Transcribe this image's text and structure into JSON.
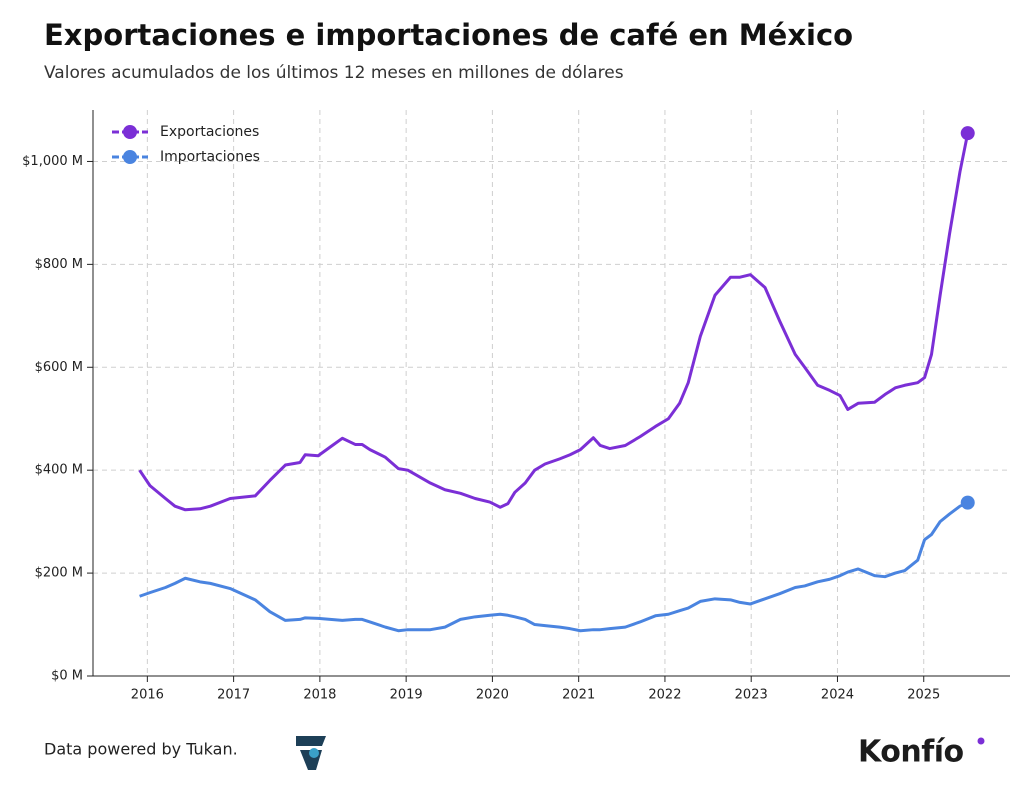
{
  "chart_data": {
    "type": "line",
    "title": "Exportaciones e importaciones de café en México",
    "subtitle": "Valores acumulados de los últimos 12 meses en millones de dólares",
    "footer": "Data powered by Tukan.",
    "brand": "Konfío",
    "x": [
      2015.91,
      2016.03,
      2016.21,
      2016.32,
      2016.44,
      2016.61,
      2016.73,
      2016.96,
      2017.25,
      2017.42,
      2017.6,
      2017.77,
      2017.83,
      2017.98,
      2018.12,
      2018.26,
      2018.41,
      2018.49,
      2018.58,
      2018.76,
      2018.91,
      2019.02,
      2019.28,
      2019.45,
      2019.63,
      2019.8,
      2019.97,
      2020.09,
      2020.18,
      2020.26,
      2020.38,
      2020.49,
      2020.61,
      2020.78,
      2020.9,
      2021.02,
      2021.17,
      2021.25,
      2021.36,
      2021.54,
      2021.71,
      2021.89,
      2022.04,
      2022.17,
      2022.27,
      2022.41,
      2022.58,
      2022.76,
      2022.87,
      2022.99,
      2023.16,
      2023.33,
      2023.51,
      2023.62,
      2023.77,
      2023.91,
      2024.03,
      2024.12,
      2024.24,
      2024.43,
      2024.55,
      2024.67,
      2024.78,
      2024.93,
      2025.01,
      2025.09,
      2025.19,
      2025.3,
      2025.42,
      2025.51
    ],
    "series": [
      {
        "name": "Exportaciones",
        "color": "#7b2fd6",
        "values": [
          400,
          370,
          345,
          330,
          323,
          325,
          330,
          345,
          350,
          380,
          410,
          415,
          430,
          428,
          445,
          462,
          450,
          450,
          440,
          425,
          403,
          400,
          375,
          362,
          355,
          345,
          338,
          328,
          335,
          357,
          375,
          400,
          412,
          422,
          430,
          440,
          463,
          448,
          442,
          448,
          465,
          485,
          500,
          530,
          570,
          660,
          740,
          775,
          775,
          780,
          755,
          690,
          625,
          600,
          565,
          555,
          545,
          518,
          530,
          532,
          547,
          560,
          565,
          570,
          580,
          625,
          740,
          860,
          980,
          1055
        ]
      },
      {
        "name": "Importaciones",
        "color": "#4a84e0",
        "values": [
          155,
          162,
          172,
          180,
          190,
          183,
          180,
          170,
          148,
          125,
          108,
          110,
          113,
          112,
          110,
          108,
          110,
          110,
          105,
          95,
          88,
          90,
          90,
          95,
          110,
          115,
          118,
          120,
          118,
          115,
          110,
          100,
          98,
          95,
          92,
          88,
          90,
          90,
          92,
          95,
          105,
          117,
          120,
          127,
          132,
          145,
          150,
          148,
          143,
          140,
          150,
          160,
          172,
          175,
          183,
          188,
          195,
          202,
          208,
          195,
          193,
          200,
          205,
          225,
          265,
          275,
          300,
          315,
          330,
          337
        ]
      }
    ],
    "xlim": [
      2015.37,
      2026.0
    ],
    "xticks": [
      2016,
      2017,
      2018,
      2019,
      2020,
      2021,
      2022,
      2023,
      2024,
      2025
    ],
    "ylim": [
      0,
      1100
    ],
    "yticks": [
      {
        "value": 0,
        "label": "$0 M"
      },
      {
        "value": 200,
        "label": "$200 M"
      },
      {
        "value": 400,
        "label": "$400 M"
      },
      {
        "value": 600,
        "label": "$600 M"
      },
      {
        "value": 800,
        "label": "$800 M"
      },
      {
        "value": 1000,
        "label": "$1,000 M"
      }
    ],
    "grid": true,
    "legend": "upper left"
  }
}
